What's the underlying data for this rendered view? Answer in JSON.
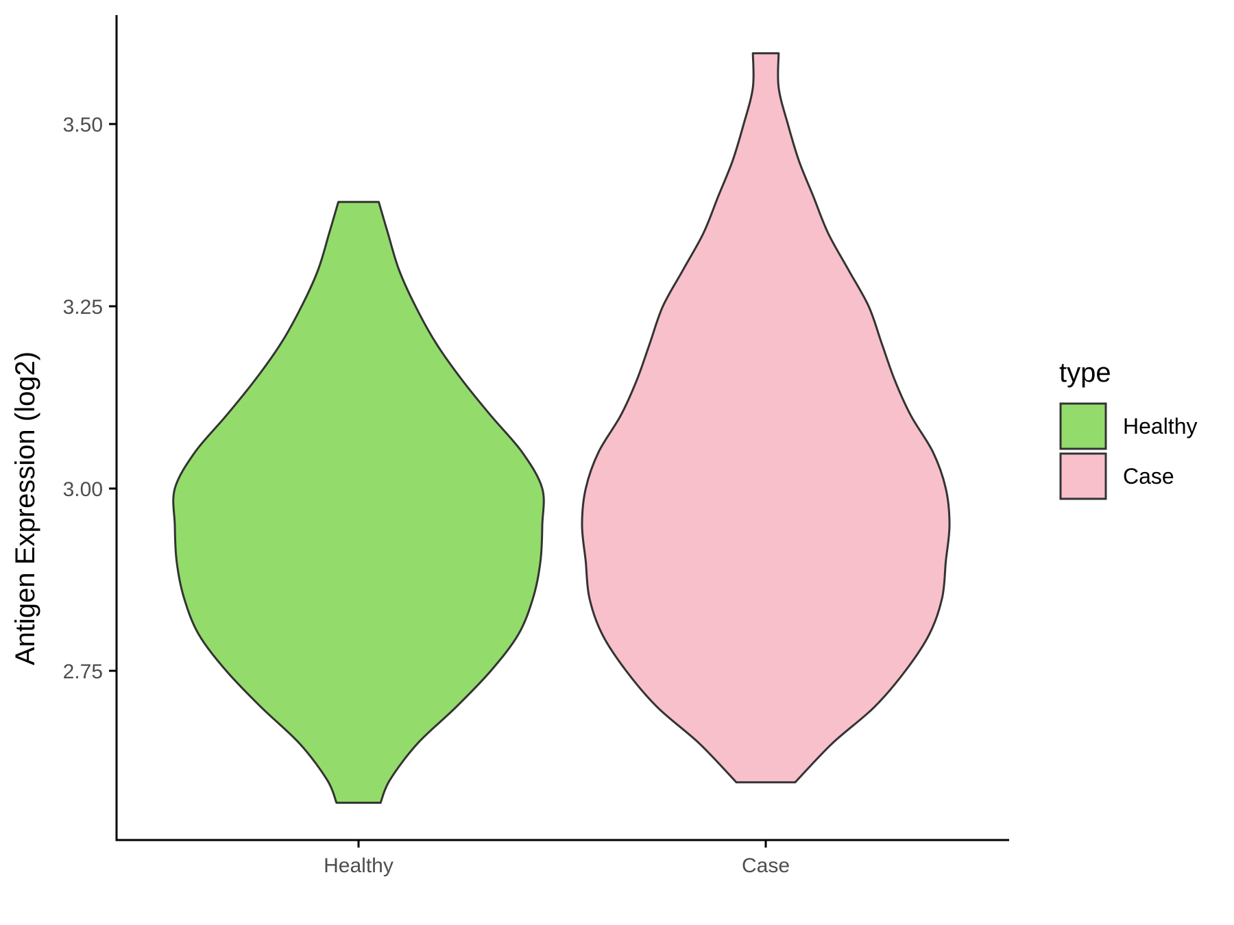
{
  "chart_data": {
    "type": "violin",
    "title": "",
    "xlabel": "",
    "ylabel": "Antigen Expression (log2)",
    "ylim": [
      2.52,
      3.65
    ],
    "yticks": [
      2.75,
      3.0,
      3.25,
      3.5
    ],
    "ytick_labels": [
      "2.75",
      "3.00",
      "3.25",
      "3.50"
    ],
    "categories": [
      "Healthy",
      "Case"
    ],
    "grid": false,
    "legend": {
      "title": "type",
      "position": "right",
      "entries": [
        "Healthy",
        "Case"
      ]
    },
    "series": [
      {
        "category": "Healthy",
        "color": "#93DC6B",
        "min": 2.569,
        "max": 3.393,
        "density_profile": [
          [
            2.569,
            0.12
          ],
          [
            2.6,
            0.17
          ],
          [
            2.65,
            0.32
          ],
          [
            2.7,
            0.53
          ],
          [
            2.75,
            0.72
          ],
          [
            2.8,
            0.87
          ],
          [
            2.85,
            0.95
          ],
          [
            2.9,
            0.99
          ],
          [
            2.95,
            1.0
          ],
          [
            3.0,
            1.0
          ],
          [
            3.05,
            0.89
          ],
          [
            3.1,
            0.72
          ],
          [
            3.15,
            0.56
          ],
          [
            3.2,
            0.42
          ],
          [
            3.25,
            0.31
          ],
          [
            3.3,
            0.22
          ],
          [
            3.35,
            0.16
          ],
          [
            3.393,
            0.11
          ]
        ]
      },
      {
        "category": "Case",
        "color": "#F8C0CB",
        "min": 2.597,
        "max": 3.597,
        "density_profile": [
          [
            2.597,
            0.16
          ],
          [
            2.65,
            0.36
          ],
          [
            2.7,
            0.59
          ],
          [
            2.75,
            0.76
          ],
          [
            2.8,
            0.89
          ],
          [
            2.85,
            0.96
          ],
          [
            2.9,
            0.98
          ],
          [
            2.95,
            1.0
          ],
          [
            3.0,
            0.98
          ],
          [
            3.05,
            0.91
          ],
          [
            3.1,
            0.79
          ],
          [
            3.15,
            0.7
          ],
          [
            3.2,
            0.63
          ],
          [
            3.25,
            0.56
          ],
          [
            3.3,
            0.45
          ],
          [
            3.35,
            0.34
          ],
          [
            3.4,
            0.26
          ],
          [
            3.45,
            0.18
          ],
          [
            3.5,
            0.12
          ],
          [
            3.55,
            0.07
          ],
          [
            3.597,
            0.07
          ]
        ]
      }
    ]
  }
}
